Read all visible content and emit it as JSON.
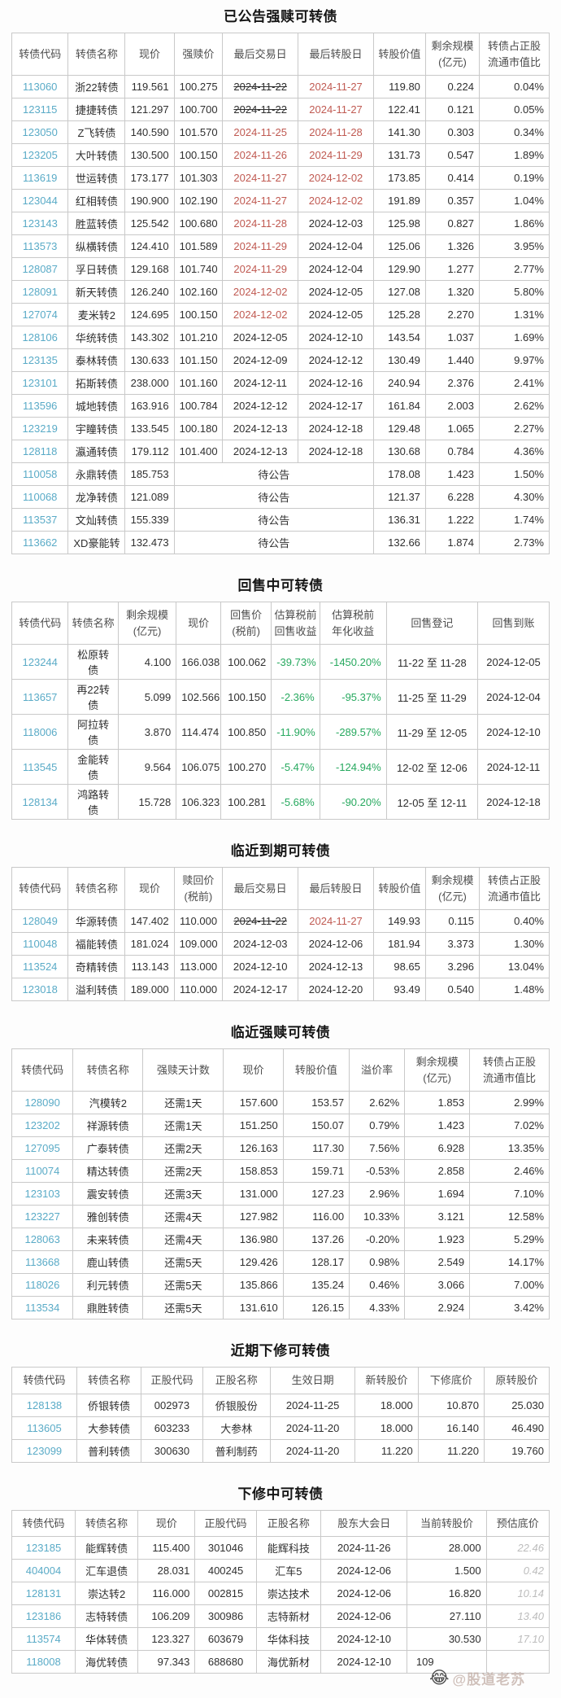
{
  "colors": {
    "bond_code_accent": "#5aabc7",
    "urgent_date_red": "#c05a52",
    "negative_yield_green": "#27a95f",
    "estimate_gray": "#bdbdbd",
    "border_gray": "#c9c9c9"
  },
  "watermark": {
    "emoji": "😂",
    "text": "@股道老苏"
  },
  "tables": [
    {
      "title": "已公告强赎可转债",
      "columns": [
        "转债代码",
        "转债名称",
        "现价",
        "强赎价",
        "最后交易日",
        "最后转股日",
        "转股价值",
        "剩余规模\n(亿元)",
        "转债占正股\n流通市值比"
      ],
      "widths": [
        10.5,
        10.6,
        9.1,
        9.0,
        14.1,
        14.0,
        9.7,
        10.0,
        13.0
      ],
      "aligns": [
        "c",
        "c",
        "r",
        "r",
        "c",
        "c",
        "r",
        "r",
        "r"
      ],
      "rows": [
        [
          "113060",
          "浙22转债",
          "119.561",
          "100.275",
          {
            "v": "2024-11-22",
            "s": "strike"
          },
          {
            "v": "2024-11-27",
            "s": "red"
          },
          "119.80",
          "0.224",
          "0.04%"
        ],
        [
          "123115",
          "捷捷转债",
          "121.297",
          "100.700",
          {
            "v": "2024-11-22",
            "s": "strike"
          },
          {
            "v": "2024-11-27",
            "s": "red"
          },
          "122.41",
          "0.121",
          "0.05%"
        ],
        [
          "123050",
          "Z飞转债",
          "140.590",
          "101.570",
          {
            "v": "2024-11-25",
            "s": "red"
          },
          {
            "v": "2024-11-28",
            "s": "red"
          },
          "141.30",
          "0.303",
          "0.34%"
        ],
        [
          "123205",
          "大叶转债",
          "130.500",
          "100.150",
          {
            "v": "2024-11-26",
            "s": "red"
          },
          {
            "v": "2024-11-29",
            "s": "red"
          },
          "131.73",
          "0.547",
          "1.89%"
        ],
        [
          "113619",
          "世运转债",
          "173.177",
          "101.303",
          {
            "v": "2024-11-27",
            "s": "red"
          },
          {
            "v": "2024-12-02",
            "s": "red"
          },
          "173.85",
          "0.414",
          "0.19%"
        ],
        [
          "123044",
          "红相转债",
          "190.900",
          "102.190",
          {
            "v": "2024-11-27",
            "s": "red"
          },
          {
            "v": "2024-12-02",
            "s": "red"
          },
          "191.89",
          "0.357",
          "1.04%"
        ],
        [
          "123143",
          "胜蓝转债",
          "125.542",
          "100.680",
          {
            "v": "2024-11-28",
            "s": "red"
          },
          "2024-12-03",
          "125.98",
          "0.827",
          "1.86%"
        ],
        [
          "113573",
          "纵横转债",
          "124.410",
          "101.589",
          {
            "v": "2024-11-29",
            "s": "red"
          },
          "2024-12-04",
          "125.06",
          "1.326",
          "3.95%"
        ],
        [
          "128087",
          "孚日转债",
          "129.168",
          "101.740",
          {
            "v": "2024-11-29",
            "s": "red"
          },
          "2024-12-04",
          "129.90",
          "1.277",
          "2.77%"
        ],
        [
          "128091",
          "新天转债",
          "126.240",
          "102.160",
          {
            "v": "2024-12-02",
            "s": "red"
          },
          "2024-12-05",
          "127.08",
          "1.320",
          "5.80%"
        ],
        [
          "127074",
          "麦米转2",
          "124.695",
          "100.150",
          {
            "v": "2024-12-02",
            "s": "red"
          },
          "2024-12-05",
          "125.28",
          "2.270",
          "1.31%"
        ],
        [
          "128106",
          "华统转债",
          "143.302",
          "101.210",
          "2024-12-05",
          "2024-12-10",
          "143.54",
          "1.037",
          "1.69%"
        ],
        [
          "123135",
          "泰林转债",
          "130.633",
          "101.150",
          "2024-12-09",
          "2024-12-12",
          "130.49",
          "1.440",
          "9.97%"
        ],
        [
          "123101",
          "拓斯转债",
          "238.000",
          "101.160",
          "2024-12-11",
          "2024-12-16",
          "240.94",
          "2.376",
          "2.41%"
        ],
        [
          "113596",
          "城地转债",
          "163.916",
          "100.784",
          "2024-12-12",
          "2024-12-17",
          "161.84",
          "2.003",
          "2.62%"
        ],
        [
          "123219",
          "宇瞳转债",
          "133.545",
          "100.180",
          "2024-12-13",
          "2024-12-18",
          "129.48",
          "1.065",
          "2.27%"
        ],
        [
          "128118",
          "瀛通转债",
          "179.112",
          "101.400",
          "2024-12-13",
          "2024-12-18",
          "130.68",
          "0.784",
          "4.36%"
        ],
        [
          "110058",
          "永鼎转债",
          "185.753",
          {
            "v": "待公告",
            "cs": 3
          },
          "178.08",
          "1.423",
          "1.50%"
        ],
        [
          "110068",
          "龙净转债",
          "121.089",
          {
            "v": "待公告",
            "cs": 3
          },
          "121.37",
          "6.228",
          "4.30%"
        ],
        [
          "113537",
          "文灿转债",
          "155.339",
          {
            "v": "待公告",
            "cs": 3
          },
          "136.31",
          "1.222",
          "1.74%"
        ],
        [
          "113662",
          "XD豪能转",
          "132.473",
          {
            "v": "待公告",
            "cs": 3
          },
          "132.66",
          "1.874",
          "2.73%"
        ]
      ]
    },
    {
      "title": "回售中可转债",
      "columns": [
        "转债代码",
        "转债名称",
        "剩余规模\n(亿元)",
        "现价",
        "回售价\n(税前)",
        "估算税前\n回售收益",
        "估算税前\n年化收益",
        "回售登记",
        "回售到账"
      ],
      "widths": [
        10.5,
        9.3,
        10.8,
        8.3,
        9.4,
        9.0,
        12.4,
        17.0,
        13.3
      ],
      "aligns": [
        "c",
        "c",
        "r",
        "r",
        "r",
        "r",
        "r",
        "c",
        "c"
      ],
      "rows": [
        [
          "123244",
          "松原转债",
          "4.100",
          "166.038",
          "100.062",
          {
            "v": "-39.73%",
            "s": "green"
          },
          {
            "v": "-1450.20%",
            "s": "green"
          },
          "11-22 至 11-28",
          "2024-12-05"
        ],
        [
          "113657",
          "再22转债",
          "5.099",
          "102.566",
          "100.150",
          {
            "v": "-2.36%",
            "s": "green"
          },
          {
            "v": "-95.37%",
            "s": "green"
          },
          "11-25 至 11-29",
          "2024-12-04"
        ],
        [
          "118006",
          "阿拉转债",
          "3.870",
          "114.474",
          "100.850",
          {
            "v": "-11.90%",
            "s": "green"
          },
          {
            "v": "-289.57%",
            "s": "green"
          },
          "11-29 至 12-05",
          "2024-12-10"
        ],
        [
          "113545",
          "金能转债",
          "9.564",
          "106.075",
          "100.270",
          {
            "v": "-5.47%",
            "s": "green"
          },
          {
            "v": "-124.94%",
            "s": "green"
          },
          "12-02 至 12-06",
          "2024-12-11"
        ],
        [
          "128134",
          "鸿路转债",
          "15.728",
          "106.323",
          "100.281",
          {
            "v": "-5.68%",
            "s": "green"
          },
          {
            "v": "-90.20%",
            "s": "green"
          },
          "12-05 至 12-11",
          "2024-12-18"
        ]
      ]
    },
    {
      "title": "临近到期可转债",
      "columns": [
        "转债代码",
        "转债名称",
        "现价",
        "赎回价\n(税前)",
        "最后交易日",
        "最后转股日",
        "转股价值",
        "剩余规模\n(亿元)",
        "转债占正股\n流通市值比"
      ],
      "widths": [
        10.5,
        10.6,
        9.1,
        9.0,
        14.1,
        14.0,
        9.7,
        10.0,
        13.0
      ],
      "aligns": [
        "c",
        "c",
        "r",
        "r",
        "c",
        "c",
        "r",
        "r",
        "r"
      ],
      "rows": [
        [
          "128049",
          "华源转债",
          "147.402",
          "110.000",
          {
            "v": "2024-11-22",
            "s": "strike"
          },
          {
            "v": "2024-11-27",
            "s": "red"
          },
          "149.93",
          "0.115",
          "0.40%"
        ],
        [
          "110048",
          "福能转债",
          "181.024",
          "109.000",
          "2024-12-03",
          "2024-12-06",
          "181.94",
          "3.373",
          "1.30%"
        ],
        [
          "113524",
          "奇精转债",
          "113.143",
          "113.000",
          "2024-12-10",
          "2024-12-13",
          "98.65",
          "3.296",
          "13.04%"
        ],
        [
          "123018",
          "溢利转债",
          "189.000",
          "110.000",
          "2024-12-17",
          "2024-12-20",
          "93.49",
          "0.540",
          "1.48%"
        ]
      ]
    },
    {
      "title": "临近强赎可转债",
      "columns": [
        "转债代码",
        "转债名称",
        "强赎天计数",
        "现价",
        "转股价值",
        "溢价率",
        "剩余规模\n(亿元)",
        "转债占正股\n流通市值比"
      ],
      "widths": [
        11.4,
        13.0,
        15.0,
        11.1,
        12.3,
        10.3,
        12.1,
        14.8
      ],
      "aligns": [
        "c",
        "c",
        "c",
        "r",
        "r",
        "r",
        "r",
        "r"
      ],
      "rows": [
        [
          "128090",
          "汽模转2",
          "还需1天",
          "157.600",
          "153.57",
          "2.62%",
          "1.853",
          "2.99%"
        ],
        [
          "123202",
          "祥源转债",
          "还需1天",
          "151.250",
          "150.07",
          "0.79%",
          "1.423",
          "7.02%"
        ],
        [
          "127095",
          "广泰转债",
          "还需2天",
          "126.163",
          "117.30",
          "7.56%",
          "6.928",
          "13.35%"
        ],
        [
          "110074",
          "精达转债",
          "还需2天",
          "158.853",
          "159.71",
          "-0.53%",
          "2.858",
          "2.46%"
        ],
        [
          "123103",
          "震安转债",
          "还需3天",
          "131.000",
          "127.23",
          "2.96%",
          "1.694",
          "7.10%"
        ],
        [
          "123227",
          "雅创转债",
          "还需4天",
          "127.982",
          "116.00",
          "10.33%",
          "3.121",
          "12.58%"
        ],
        [
          "128063",
          "未来转债",
          "还需4天",
          "136.980",
          "137.26",
          "-0.20%",
          "1.923",
          "5.29%"
        ],
        [
          "113668",
          "鹿山转债",
          "还需5天",
          "129.426",
          "128.17",
          "0.98%",
          "2.549",
          "14.17%"
        ],
        [
          "118026",
          "利元转债",
          "还需5天",
          "135.866",
          "135.24",
          "0.46%",
          "3.066",
          "7.00%"
        ],
        [
          "113534",
          "鼎胜转债",
          "还需5天",
          "131.610",
          "126.15",
          "4.33%",
          "2.924",
          "3.42%"
        ]
      ]
    },
    {
      "title": "近期下修可转债",
      "columns": [
        "转债代码",
        "转债名称",
        "正股代码",
        "正股名称",
        "生效日期",
        "新转股价",
        "下修底价",
        "原转股价"
      ],
      "widths": [
        12.1,
        12.0,
        11.4,
        12.6,
        15.8,
        11.7,
        12.3,
        12.1
      ],
      "aligns": [
        "c",
        "c",
        "c",
        "c",
        "c",
        "r",
        "r",
        "r"
      ],
      "rows": [
        [
          "128138",
          "侨银转债",
          "002973",
          "侨银股份",
          "2024-11-25",
          "18.000",
          "10.870",
          "25.030"
        ],
        [
          "113605",
          "大参转债",
          "603233",
          "大参林",
          "2024-11-20",
          "18.000",
          "16.140",
          "46.490"
        ],
        [
          "123099",
          "普利转债",
          "300630",
          "普利制药",
          "2024-11-20",
          "11.220",
          "11.220",
          "19.760"
        ]
      ]
    },
    {
      "title": "下修中可转债",
      "columns": [
        "转债代码",
        "转债名称",
        "现价",
        "正股代码",
        "正股名称",
        "股东大会日",
        "当前转股价",
        "预估底价"
      ],
      "widths": [
        11.8,
        11.7,
        10.6,
        11.4,
        12.0,
        16.1,
        14.7,
        11.7
      ],
      "aligns": [
        "c",
        "c",
        "r",
        "c",
        "c",
        "c",
        "r",
        "r"
      ],
      "rows": [
        [
          "123185",
          "能辉转债",
          "115.400",
          "301046",
          "能辉科技",
          "2024-11-26",
          "28.000",
          {
            "v": "22.46",
            "s": "est"
          }
        ],
        [
          "404004",
          "汇车退债",
          "28.031",
          "400245",
          "汇车5",
          "2024-12-06",
          "1.500",
          {
            "v": "0.42",
            "s": "est"
          }
        ],
        [
          "128131",
          "崇达转2",
          "116.000",
          "002815",
          "崇达技术",
          "2024-12-06",
          "16.820",
          {
            "v": "10.14",
            "s": "est"
          }
        ],
        [
          "123186",
          "志特转债",
          "106.209",
          "300986",
          "志特新材",
          "2024-12-06",
          "27.110",
          {
            "v": "13.40",
            "s": "est"
          }
        ],
        [
          "113574",
          "华体转债",
          "123.327",
          "603679",
          "华体科技",
          "2024-12-10",
          "30.530",
          {
            "v": "17.10",
            "s": "est"
          }
        ],
        [
          "118008",
          "海优转债",
          "97.343",
          "688680",
          "海优新材",
          "2024-12-10",
          {
            "v": "109",
            "s": "padr"
          },
          ""
        ]
      ]
    }
  ]
}
